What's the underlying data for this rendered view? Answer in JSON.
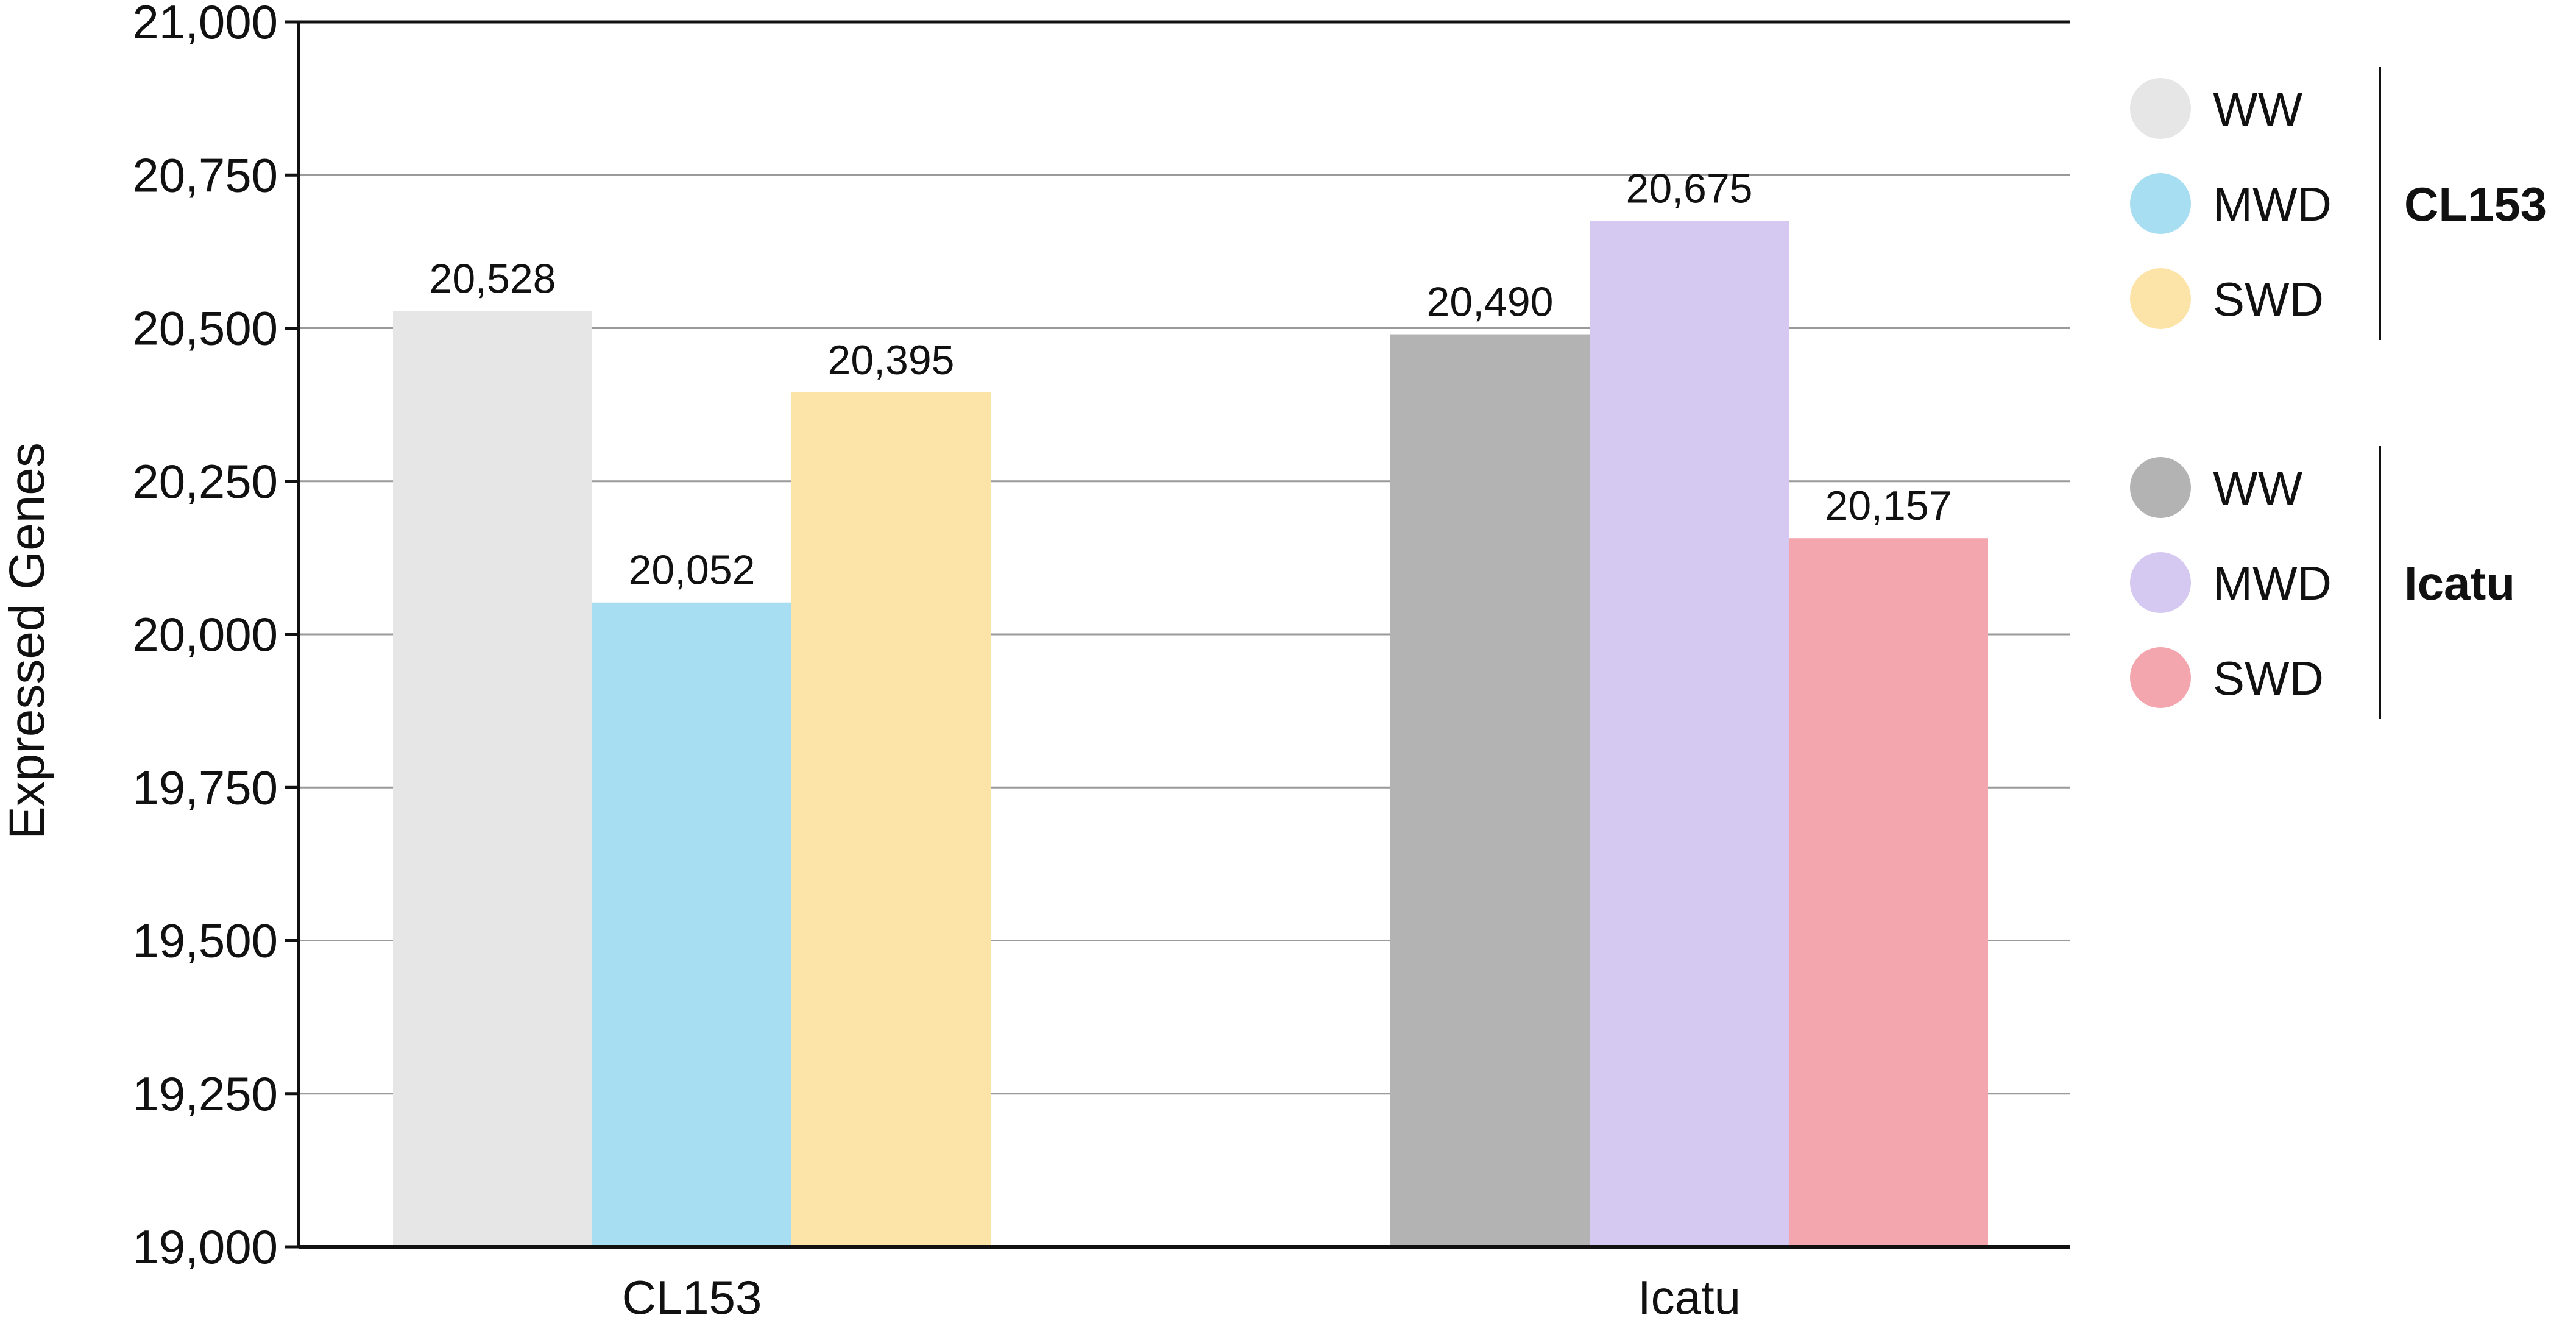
{
  "chart_data": {
    "type": "bar",
    "title": "",
    "xlabel": "",
    "ylabel": "Expressed Genes",
    "ylim": [
      19000,
      21000
    ],
    "yticks": [
      19000,
      19250,
      19500,
      19750,
      20000,
      20250,
      20500,
      20750,
      21000
    ],
    "ytick_labels": [
      "19,000",
      "19,250",
      "19,500",
      "19,750",
      "20,000",
      "20,250",
      "20,500",
      "20,750",
      "21,000"
    ],
    "grid": true,
    "legend_position": "right",
    "categories": [
      "CL153",
      "Icatu"
    ],
    "groups": [
      {
        "category": "CL153",
        "bars": [
          {
            "name": "WW",
            "value": 20528,
            "label": "20,528",
            "color": "#e6e6e6"
          },
          {
            "name": "MWD",
            "value": 20052,
            "label": "20,052",
            "color": "#a8def1"
          },
          {
            "name": "SWD",
            "value": 20395,
            "label": "20,395",
            "color": "#fce4a8"
          }
        ]
      },
      {
        "category": "Icatu",
        "bars": [
          {
            "name": "WW",
            "value": 20490,
            "label": "20,490",
            "color": "#b3b3b3"
          },
          {
            "name": "MWD",
            "value": 20675,
            "label": "20,675",
            "color": "#d5c9f2"
          },
          {
            "name": "SWD",
            "value": 20157,
            "label": "20,157",
            "color": "#f4a6ae"
          }
        ]
      }
    ],
    "legend": [
      {
        "group": "CL153",
        "items": [
          {
            "label": "WW",
            "color": "#e6e6e6"
          },
          {
            "label": "MWD",
            "color": "#a8def1"
          },
          {
            "label": "SWD",
            "color": "#fce4a8"
          }
        ]
      },
      {
        "group": "Icatu",
        "items": [
          {
            "label": "WW",
            "color": "#b3b3b3"
          },
          {
            "label": "MWD",
            "color": "#d5c9f2"
          },
          {
            "label": "SWD",
            "color": "#f4a6ae"
          }
        ]
      }
    ]
  }
}
